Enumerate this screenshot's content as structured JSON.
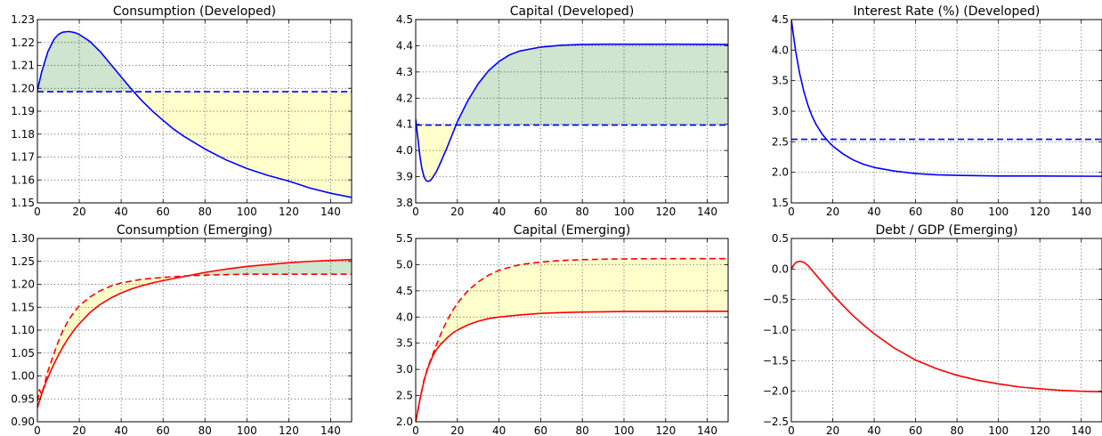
{
  "chart_data": [
    {
      "id": "consumption-developed",
      "type": "line",
      "title": "Consumption (Developed)",
      "xlim": [
        0,
        150
      ],
      "ylim": [
        1.15,
        1.23
      ],
      "xticks": [
        0,
        20,
        40,
        60,
        80,
        100,
        120,
        140
      ],
      "yticks": [
        1.15,
        1.16,
        1.17,
        1.18,
        1.19,
        1.2,
        1.21,
        1.22,
        1.23
      ],
      "ytick_labels": [
        "1.15",
        "1.16",
        "1.17",
        "1.18",
        "1.19",
        "1.20",
        "1.21",
        "1.22",
        "1.23"
      ],
      "grid": true,
      "series": [
        {
          "style": "solid",
          "color": "#0000ff",
          "x": [
            0,
            2,
            5,
            8,
            10,
            12,
            15,
            18,
            20,
            25,
            30,
            35,
            40,
            45,
            50,
            55,
            60,
            65,
            70,
            80,
            90,
            100,
            110,
            120,
            130,
            140,
            150
          ],
          "y": [
            1.199,
            1.207,
            1.216,
            1.2215,
            1.2235,
            1.2245,
            1.2248,
            1.2243,
            1.2235,
            1.2205,
            1.216,
            1.2105,
            1.205,
            1.1995,
            1.1945,
            1.19,
            1.186,
            1.1822,
            1.179,
            1.1735,
            1.1688,
            1.165,
            1.162,
            1.1595,
            1.1565,
            1.1542,
            1.1524
          ]
        },
        {
          "style": "dashed",
          "color": "#0000ff",
          "x": [
            0,
            150
          ],
          "y": [
            1.1985,
            1.1985
          ]
        }
      ],
      "fill": {
        "reference": 1.1985,
        "above_color": "#cfe5cf",
        "below_color": "#ffffcc"
      }
    },
    {
      "id": "capital-developed",
      "type": "line",
      "title": "Capital (Developed)",
      "xlim": [
        0,
        150
      ],
      "ylim": [
        3.8,
        4.5
      ],
      "xticks": [
        0,
        20,
        40,
        60,
        80,
        100,
        120,
        140
      ],
      "yticks": [
        3.8,
        3.9,
        4.0,
        4.1,
        4.2,
        4.3,
        4.4,
        4.5
      ],
      "ytick_labels": [
        "3.8",
        "3.9",
        "4.0",
        "4.1",
        "4.2",
        "4.3",
        "4.4",
        "4.5"
      ],
      "grid": true,
      "series": [
        {
          "style": "solid",
          "color": "#0000ff",
          "x": [
            0,
            1,
            2,
            3,
            4,
            5,
            6,
            7,
            8,
            10,
            12,
            15,
            18,
            20,
            25,
            30,
            35,
            40,
            45,
            50,
            60,
            70,
            80,
            90,
            100,
            120,
            150
          ],
          "y": [
            4.12,
            4.05,
            3.98,
            3.93,
            3.9,
            3.885,
            3.882,
            3.885,
            3.895,
            3.92,
            3.955,
            4.01,
            4.07,
            4.11,
            4.19,
            4.255,
            4.305,
            4.34,
            4.365,
            4.38,
            4.395,
            4.402,
            4.405,
            4.406,
            4.406,
            4.406,
            4.405
          ]
        },
        {
          "style": "dashed",
          "color": "#0000ff",
          "x": [
            0,
            150
          ],
          "y": [
            4.097,
            4.097
          ]
        }
      ],
      "fill": {
        "reference": 4.097,
        "above_color": "#cfe5cf",
        "below_color": "#ffffcc"
      }
    },
    {
      "id": "interest-rate-developed",
      "type": "line",
      "title": "Interest Rate (%) (Developed)",
      "xlim": [
        0,
        150
      ],
      "ylim": [
        1.5,
        4.5
      ],
      "xticks": [
        0,
        20,
        40,
        60,
        80,
        100,
        120,
        140
      ],
      "yticks": [
        1.5,
        2.0,
        2.5,
        3.0,
        3.5,
        4.0,
        4.5
      ],
      "ytick_labels": [
        "1.5",
        "2.0",
        "2.5",
        "3.0",
        "3.5",
        "4.0",
        "4.5"
      ],
      "grid": true,
      "series": [
        {
          "style": "solid",
          "color": "#0000ff",
          "x": [
            0,
            2,
            4,
            6,
            8,
            10,
            12,
            15,
            18,
            20,
            25,
            30,
            35,
            40,
            50,
            60,
            70,
            80,
            90,
            100,
            120,
            150
          ],
          "y": [
            4.5,
            4.0,
            3.62,
            3.33,
            3.1,
            2.92,
            2.78,
            2.62,
            2.5,
            2.43,
            2.3,
            2.2,
            2.13,
            2.08,
            2.02,
            1.98,
            1.96,
            1.95,
            1.945,
            1.94,
            1.94,
            1.935
          ]
        },
        {
          "style": "dashed",
          "color": "#0000ff",
          "x": [
            0,
            150
          ],
          "y": [
            2.54,
            2.54
          ]
        }
      ]
    },
    {
      "id": "consumption-emerging",
      "type": "line",
      "title": "Consumption (Emerging)",
      "xlim": [
        0,
        150
      ],
      "ylim": [
        0.9,
        1.3
      ],
      "xticks": [
        0,
        20,
        40,
        60,
        80,
        100,
        120,
        140
      ],
      "yticks": [
        0.9,
        0.95,
        1.0,
        1.05,
        1.1,
        1.15,
        1.2,
        1.25,
        1.3
      ],
      "ytick_labels": [
        "0.90",
        "0.95",
        "1.00",
        "1.05",
        "1.10",
        "1.15",
        "1.20",
        "1.25",
        "1.30"
      ],
      "grid": true,
      "series": [
        {
          "style": "solid",
          "color": "#ff0000",
          "x": [
            0,
            2,
            4,
            6,
            8,
            10,
            12,
            15,
            18,
            20,
            25,
            30,
            35,
            40,
            45,
            50,
            55,
            60,
            70,
            80,
            90,
            100,
            110,
            120,
            130,
            140,
            150
          ],
          "y": [
            0.93,
            0.96,
            0.985,
            1.007,
            1.027,
            1.045,
            1.062,
            1.084,
            1.103,
            1.114,
            1.138,
            1.156,
            1.17,
            1.181,
            1.19,
            1.197,
            1.203,
            1.208,
            1.217,
            1.226,
            1.233,
            1.239,
            1.243,
            1.247,
            1.25,
            1.252,
            1.254
          ]
        },
        {
          "style": "dashed",
          "color": "#ff0000",
          "x": [
            0,
            1,
            2,
            3,
            5,
            8,
            10,
            12,
            15,
            18,
            20,
            25,
            30,
            35,
            40,
            50,
            60,
            70,
            80,
            90,
            100,
            120,
            150
          ],
          "y": [
            0.945,
            0.97,
            0.96,
            0.975,
            1.01,
            1.05,
            1.075,
            1.097,
            1.123,
            1.142,
            1.153,
            1.172,
            1.186,
            1.196,
            1.203,
            1.211,
            1.215,
            1.218,
            1.22,
            1.221,
            1.222,
            1.222,
            1.222
          ]
        }
      ],
      "fill": {
        "between": [
          0,
          1
        ],
        "above_color": "#cfe5cf",
        "below_color": "#ffffcc"
      }
    },
    {
      "id": "capital-emerging",
      "type": "line",
      "title": "Capital (Emerging)",
      "xlim": [
        0,
        150
      ],
      "ylim": [
        2.0,
        5.5
      ],
      "xticks": [
        0,
        20,
        40,
        60,
        80,
        100,
        120,
        140
      ],
      "yticks": [
        2.0,
        2.5,
        3.0,
        3.5,
        4.0,
        4.5,
        5.0,
        5.5
      ],
      "ytick_labels": [
        "2.0",
        "2.5",
        "3.0",
        "3.5",
        "4.0",
        "4.5",
        "5.0",
        "5.5"
      ],
      "grid": true,
      "series": [
        {
          "style": "solid",
          "color": "#ff0000",
          "x": [
            0,
            1,
            2,
            3,
            4,
            5,
            6,
            8,
            10,
            12,
            15,
            18,
            20,
            25,
            30,
            35,
            40,
            50,
            60,
            70,
            80,
            90,
            100,
            120,
            150
          ],
          "y": [
            2.0,
            2.2,
            2.42,
            2.6,
            2.78,
            2.92,
            3.04,
            3.24,
            3.38,
            3.48,
            3.6,
            3.7,
            3.75,
            3.85,
            3.92,
            3.97,
            4.0,
            4.04,
            4.07,
            4.085,
            4.095,
            4.1,
            4.105,
            4.108,
            4.11
          ]
        },
        {
          "style": "dashed",
          "color": "#ff0000",
          "x": [
            0,
            2,
            4,
            6,
            8,
            10,
            12,
            15,
            18,
            20,
            25,
            30,
            35,
            40,
            45,
            50,
            60,
            70,
            80,
            90,
            100,
            120,
            150
          ],
          "y": [
            2.0,
            2.42,
            2.8,
            3.06,
            3.27,
            3.47,
            3.67,
            3.93,
            4.14,
            4.26,
            4.5,
            4.67,
            4.8,
            4.89,
            4.95,
            5.0,
            5.05,
            5.08,
            5.095,
            5.105,
            5.11,
            5.115,
            5.115
          ]
        }
      ],
      "fill": {
        "between": [
          0,
          1
        ],
        "above_color": "#cfe5cf",
        "below_color": "#ffffcc"
      }
    },
    {
      "id": "debt-gdp-emerging",
      "type": "line",
      "title": "Debt / GDP (Emerging)",
      "xlim": [
        0,
        150
      ],
      "ylim": [
        -2.5,
        0.5
      ],
      "xticks": [
        0,
        20,
        40,
        60,
        80,
        100,
        120,
        140
      ],
      "yticks": [
        -2.5,
        -2.0,
        -1.5,
        -1.0,
        -0.5,
        0.0,
        0.5
      ],
      "ytick_labels": [
        "−2.5",
        "−2.0",
        "−1.5",
        "−1.0",
        "−0.5",
        "0.0",
        "0.5"
      ],
      "grid": true,
      "series": [
        {
          "style": "solid",
          "color": "#ff0000",
          "x": [
            0,
            1,
            2,
            3,
            4,
            5,
            6,
            8,
            10,
            12,
            15,
            18,
            20,
            25,
            30,
            35,
            40,
            50,
            60,
            70,
            80,
            90,
            100,
            110,
            120,
            130,
            140,
            150
          ],
          "y": [
            0.0,
            0.06,
            0.1,
            0.12,
            0.125,
            0.12,
            0.11,
            0.06,
            -0.02,
            -0.1,
            -0.22,
            -0.34,
            -0.42,
            -0.6,
            -0.77,
            -0.92,
            -1.06,
            -1.3,
            -1.49,
            -1.63,
            -1.74,
            -1.82,
            -1.88,
            -1.93,
            -1.96,
            -1.985,
            -2.0,
            -2.01
          ]
        }
      ]
    }
  ]
}
